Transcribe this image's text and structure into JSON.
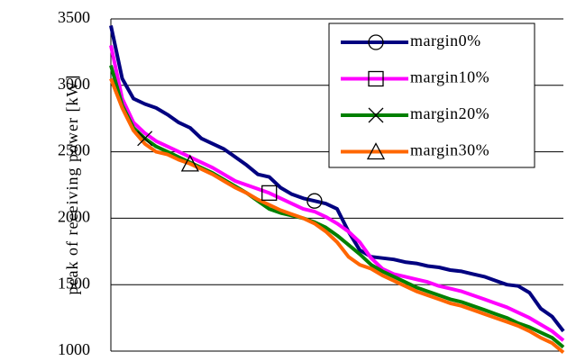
{
  "chart_data": {
    "type": "line",
    "y_label": "peak of receiving power [kW]",
    "ylim": [
      1000,
      3500
    ],
    "yticks": [
      1000,
      1500,
      2000,
      2500,
      3000,
      3500
    ],
    "grid": true,
    "legend": "upper right",
    "series": [
      {
        "name": "margin0%",
        "color": "#000080",
        "marker": "circle",
        "values": [
          3450,
          3050,
          2900,
          2860,
          2830,
          2780,
          2720,
          2680,
          2600,
          2560,
          2520,
          2460,
          2400,
          2330,
          2310,
          2230,
          2180,
          2150,
          2130,
          2110,
          2070,
          1900,
          1760,
          1710,
          1700,
          1690,
          1670,
          1660,
          1640,
          1630,
          1610,
          1600,
          1580,
          1560,
          1530,
          1500,
          1490,
          1440,
          1320,
          1260,
          1150
        ]
      },
      {
        "name": "margin10%",
        "color": "#ff00ff",
        "marker": "square",
        "values": [
          3300,
          2900,
          2720,
          2640,
          2580,
          2540,
          2500,
          2460,
          2420,
          2380,
          2330,
          2280,
          2250,
          2220,
          2190,
          2150,
          2110,
          2070,
          2050,
          2010,
          1960,
          1900,
          1820,
          1700,
          1620,
          1580,
          1560,
          1540,
          1520,
          1490,
          1470,
          1450,
          1420,
          1390,
          1360,
          1330,
          1290,
          1250,
          1200,
          1150,
          1080
        ]
      },
      {
        "name": "margin20%",
        "color": "#008000",
        "marker": "x",
        "values": [
          3150,
          2850,
          2680,
          2600,
          2540,
          2500,
          2460,
          2420,
          2380,
          2340,
          2290,
          2240,
          2190,
          2130,
          2070,
          2040,
          2020,
          2000,
          1970,
          1930,
          1870,
          1800,
          1730,
          1650,
          1600,
          1560,
          1520,
          1480,
          1450,
          1420,
          1390,
          1370,
          1340,
          1310,
          1280,
          1250,
          1210,
          1180,
          1140,
          1100,
          1030
        ]
      },
      {
        "name": "margin30%",
        "color": "#ff6600",
        "marker": "triangle",
        "values": [
          3050,
          2830,
          2660,
          2560,
          2500,
          2480,
          2440,
          2410,
          2370,
          2330,
          2280,
          2230,
          2190,
          2140,
          2100,
          2060,
          2030,
          2000,
          1960,
          1900,
          1820,
          1710,
          1650,
          1620,
          1570,
          1530,
          1490,
          1450,
          1420,
          1390,
          1360,
          1340,
          1310,
          1280,
          1250,
          1220,
          1190,
          1150,
          1100,
          1060,
          990
        ]
      }
    ]
  }
}
